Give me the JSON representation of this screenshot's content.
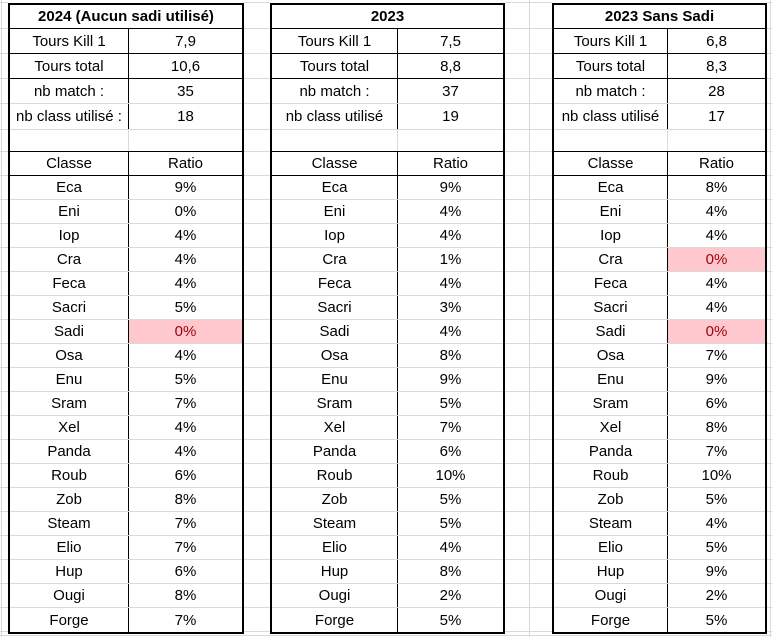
{
  "colors": {
    "highlight_bg": "#ffc7ce",
    "highlight_text": "#9c0006",
    "table_border": "#000000",
    "gridline": "#d9d9d9"
  },
  "tables": [
    {
      "title": "2024 (Aucun sadi utilisé)",
      "stats": [
        {
          "label": "Tours Kill 1",
          "value": "7,9"
        },
        {
          "label": "Tours total",
          "value": "10,6"
        },
        {
          "label": "nb match :",
          "value": "35"
        },
        {
          "label": "nb class utilisé :",
          "value": "18"
        }
      ],
      "columns": {
        "class": "Classe",
        "ratio": "Ratio"
      },
      "classes": [
        {
          "name": "Eca",
          "ratio": "9%"
        },
        {
          "name": "Eni",
          "ratio": "0%"
        },
        {
          "name": "Iop",
          "ratio": "4%"
        },
        {
          "name": "Cra",
          "ratio": "4%"
        },
        {
          "name": "Feca",
          "ratio": "4%"
        },
        {
          "name": "Sacri",
          "ratio": "5%"
        },
        {
          "name": "Sadi",
          "ratio": "0%",
          "highlight": true
        },
        {
          "name": "Osa",
          "ratio": "4%"
        },
        {
          "name": "Enu",
          "ratio": "5%"
        },
        {
          "name": "Sram",
          "ratio": "7%"
        },
        {
          "name": "Xel",
          "ratio": "4%"
        },
        {
          "name": "Panda",
          "ratio": "4%"
        },
        {
          "name": "Roub",
          "ratio": "6%"
        },
        {
          "name": "Zob",
          "ratio": "8%"
        },
        {
          "name": "Steam",
          "ratio": "7%"
        },
        {
          "name": "Elio",
          "ratio": "7%"
        },
        {
          "name": "Hup",
          "ratio": "6%"
        },
        {
          "name": "Ougi",
          "ratio": "8%"
        },
        {
          "name": "Forge",
          "ratio": "7%"
        }
      ]
    },
    {
      "title": "2023",
      "stats": [
        {
          "label": "Tours Kill 1",
          "value": "7,5"
        },
        {
          "label": "Tours total",
          "value": "8,8"
        },
        {
          "label": "nb match :",
          "value": "37"
        },
        {
          "label": "nb class utilisé",
          "value": "19"
        }
      ],
      "columns": {
        "class": "Classe",
        "ratio": "Ratio"
      },
      "classes": [
        {
          "name": "Eca",
          "ratio": "9%"
        },
        {
          "name": "Eni",
          "ratio": "4%"
        },
        {
          "name": "Iop",
          "ratio": "4%"
        },
        {
          "name": "Cra",
          "ratio": "1%"
        },
        {
          "name": "Feca",
          "ratio": "4%"
        },
        {
          "name": "Sacri",
          "ratio": "3%"
        },
        {
          "name": "Sadi",
          "ratio": "4%"
        },
        {
          "name": "Osa",
          "ratio": "8%"
        },
        {
          "name": "Enu",
          "ratio": "9%"
        },
        {
          "name": "Sram",
          "ratio": "5%"
        },
        {
          "name": "Xel",
          "ratio": "7%"
        },
        {
          "name": "Panda",
          "ratio": "6%"
        },
        {
          "name": "Roub",
          "ratio": "10%"
        },
        {
          "name": "Zob",
          "ratio": "5%"
        },
        {
          "name": "Steam",
          "ratio": "5%"
        },
        {
          "name": "Elio",
          "ratio": "4%"
        },
        {
          "name": "Hup",
          "ratio": "8%"
        },
        {
          "name": "Ougi",
          "ratio": "2%"
        },
        {
          "name": "Forge",
          "ratio": "5%"
        }
      ]
    },
    {
      "title": "2023 Sans Sadi",
      "stats": [
        {
          "label": "Tours Kill 1",
          "value": "6,8"
        },
        {
          "label": "Tours total",
          "value": "8,3"
        },
        {
          "label": "nb match :",
          "value": "28"
        },
        {
          "label": "nb class utilisé",
          "value": "17"
        }
      ],
      "columns": {
        "class": "Classe",
        "ratio": "Ratio"
      },
      "classes": [
        {
          "name": "Eca",
          "ratio": "8%"
        },
        {
          "name": "Eni",
          "ratio": "4%"
        },
        {
          "name": "Iop",
          "ratio": "4%"
        },
        {
          "name": "Cra",
          "ratio": "0%",
          "highlight": true
        },
        {
          "name": "Feca",
          "ratio": "4%"
        },
        {
          "name": "Sacri",
          "ratio": "4%"
        },
        {
          "name": "Sadi",
          "ratio": "0%",
          "highlight": true
        },
        {
          "name": "Osa",
          "ratio": "7%"
        },
        {
          "name": "Enu",
          "ratio": "9%"
        },
        {
          "name": "Sram",
          "ratio": "6%"
        },
        {
          "name": "Xel",
          "ratio": "8%"
        },
        {
          "name": "Panda",
          "ratio": "7%"
        },
        {
          "name": "Roub",
          "ratio": "10%"
        },
        {
          "name": "Zob",
          "ratio": "5%"
        },
        {
          "name": "Steam",
          "ratio": "4%"
        },
        {
          "name": "Elio",
          "ratio": "5%"
        },
        {
          "name": "Hup",
          "ratio": "9%"
        },
        {
          "name": "Ougi",
          "ratio": "2%"
        },
        {
          "name": "Forge",
          "ratio": "5%"
        }
      ]
    }
  ]
}
